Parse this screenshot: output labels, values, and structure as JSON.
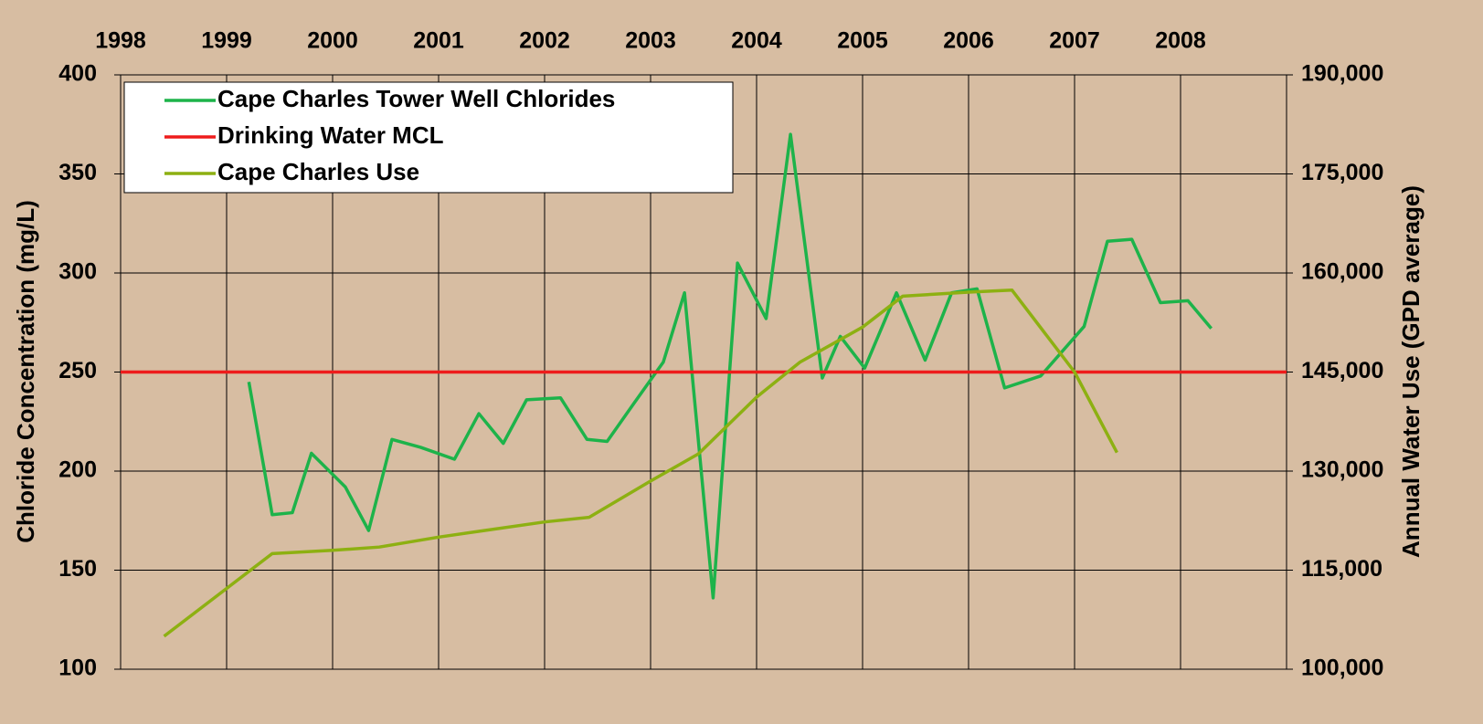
{
  "chart_data": {
    "type": "line",
    "xlim": [
      1998,
      2009
    ],
    "xticks": [
      1998,
      1999,
      2000,
      2001,
      2002,
      2003,
      2004,
      2005,
      2006,
      2007,
      2008
    ],
    "ylim": [
      100,
      400
    ],
    "yticks": [
      100,
      150,
      200,
      250,
      300,
      350,
      400
    ],
    "y2lim": [
      100000,
      190000
    ],
    "y2ticks": [
      {
        "value": 100000,
        "label": "100,000"
      },
      {
        "value": 115000,
        "label": "115,000"
      },
      {
        "value": 130000,
        "label": "130,000"
      },
      {
        "value": 145000,
        "label": "145,000"
      },
      {
        "value": 160000,
        "label": "160,000"
      },
      {
        "value": 175000,
        "label": "175,000"
      },
      {
        "value": 190000,
        "label": "190,000"
      }
    ],
    "ylabel": "Chloride Concentration (mg/L)",
    "y2label": "Annual Water Use (GPD average)",
    "grid": true,
    "legend": "top-left",
    "series": [
      {
        "name": "Cape Charles Tower Well Chlorides",
        "color": "#1db34a",
        "x": [
          1999.21,
          1999.43,
          1999.62,
          1999.8,
          2000.12,
          2000.34,
          2000.56,
          2000.83,
          2001.15,
          2001.38,
          2001.61,
          2001.83,
          2002.15,
          2002.4,
          2002.59,
          2002.84,
          2003.12,
          2003.32,
          2003.59,
          2003.82,
          2004.09,
          2004.32,
          2004.62,
          2004.79,
          2005.02,
          2005.32,
          2005.59,
          2005.84,
          2006.08,
          2006.34,
          2006.68,
          2007.09,
          2007.31,
          2007.54,
          2007.81,
          2008.07,
          2008.29
        ],
        "values": [
          245,
          178,
          179,
          209,
          192,
          170,
          216,
          212,
          206,
          229,
          214,
          236,
          237,
          216,
          215,
          234,
          255,
          290,
          136,
          305,
          277,
          370,
          247,
          268,
          252,
          290,
          256,
          290,
          292,
          242,
          248,
          273,
          316,
          317,
          285,
          286,
          272
        ]
      },
      {
        "name": "Drinking Water MCL",
        "color": "#ee1c1c",
        "x": [
          1998,
          2009
        ],
        "values": [
          250,
          250
        ]
      },
      {
        "name": "Cape Charles Use",
        "color": "#8db012",
        "axis": "y2",
        "x": [
          1998.41,
          1999.43,
          2000.0,
          2000.44,
          2001.0,
          2001.43,
          2002.0,
          2002.42,
          2003.0,
          2003.45,
          2004.0,
          2004.41,
          2005.0,
          2005.38,
          2006.0,
          2006.41,
          2007.0,
          2007.4
        ],
        "values": [
          105000,
          117500,
          118000,
          118500,
          120000,
          121000,
          122300,
          123000,
          128500,
          132600,
          141200,
          146500,
          151800,
          156500,
          157100,
          157400,
          145000,
          132800
        ]
      }
    ]
  }
}
